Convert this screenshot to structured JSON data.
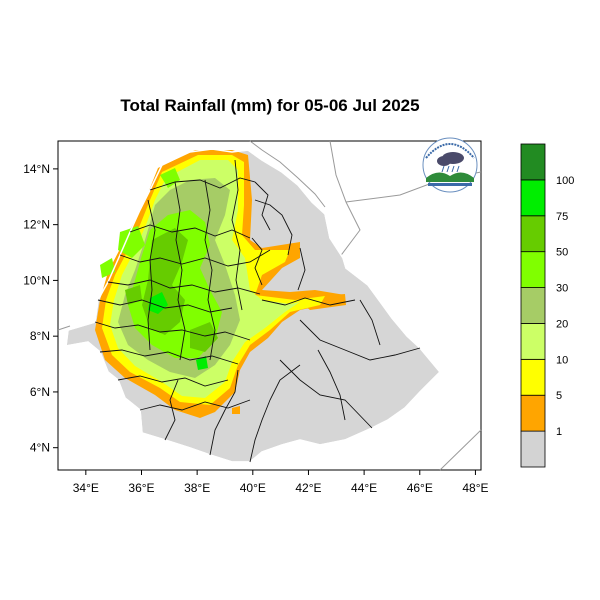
{
  "title": "Total Rainfall (mm) for 05-06 Jul 2025",
  "map": {
    "lon_ticks": [
      "34°E",
      "36°E",
      "38°E",
      "40°E",
      "42°E",
      "44°E",
      "46°E",
      "48°E"
    ],
    "lat_ticks": [
      "14°N",
      "12°N",
      "10°N",
      "8°N",
      "6°N",
      "4°N"
    ],
    "lon_range": [
      33,
      48.2
    ],
    "lat_range": [
      3.2,
      15.0
    ]
  },
  "legend": {
    "bins": [
      {
        "color": "#d3d3d3"
      },
      {
        "color": "#ffa500"
      },
      {
        "color": "#ffff00"
      },
      {
        "color": "#ccff66"
      },
      {
        "color": "#a6cc66"
      },
      {
        "color": "#80ff00"
      },
      {
        "color": "#66cc00"
      },
      {
        "color": "#00ee00"
      },
      {
        "color": "#228b22"
      }
    ],
    "labels": [
      "1",
      "5",
      "10",
      "20",
      "30",
      "50",
      "75",
      "100"
    ]
  },
  "logo": {
    "name": "ethiopian-meteorology-institute-logo"
  }
}
